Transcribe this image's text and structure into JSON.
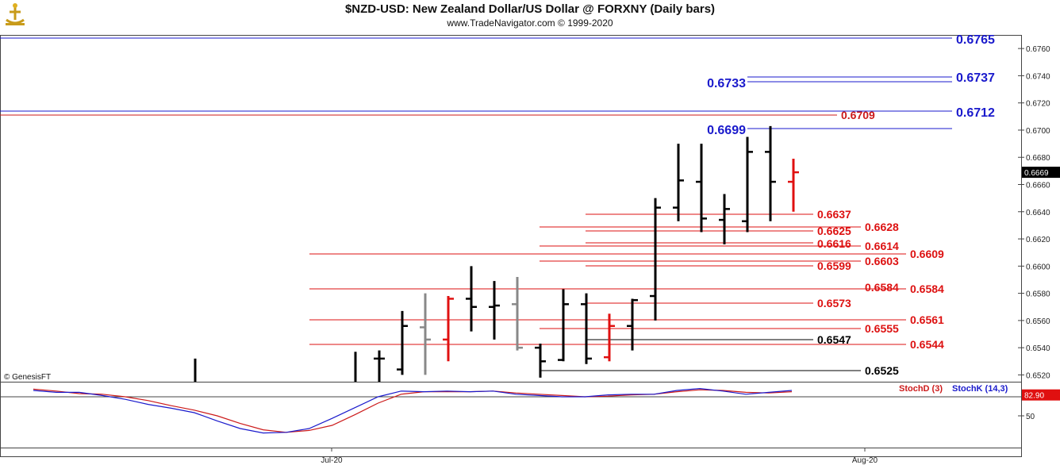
{
  "header": {
    "title": "$NZD-USD:  New Zealand Dollar/US Dollar @ FORXNY  (Daily bars)",
    "subtitle": "www.TradeNavigator.com © 1999-2020"
  },
  "chart_data": {
    "type": "ohlc",
    "ylim": [
      0.6515,
      0.677
    ],
    "y_ticks": [
      "0.6520",
      "0.6540",
      "0.6560",
      "0.6580",
      "0.6600",
      "0.6620",
      "0.6640",
      "0.6660",
      "0.6680",
      "0.6700",
      "0.6720",
      "0.6740",
      "0.6760"
    ],
    "x_ticks": [
      "Jul-20",
      "Aug-20"
    ],
    "last_price": "0.6669",
    "bars": [
      {
        "h": 0.6532,
        "l": 0.6515,
        "o": null,
        "c": null,
        "color": "black"
      },
      {
        "h": 0.6537,
        "l": 0.6515,
        "o": null,
        "c": null,
        "color": "black"
      },
      {
        "h": 0.6538,
        "l": 0.6515,
        "o": 0.6532,
        "c": 0.6532,
        "color": "black"
      },
      {
        "h": 0.6567,
        "l": 0.652,
        "o": 0.6524,
        "c": 0.6556,
        "color": "black"
      },
      {
        "h": 0.658,
        "l": 0.652,
        "o": 0.6555,
        "c": 0.6546,
        "color": "gray"
      },
      {
        "h": 0.6578,
        "l": 0.653,
        "o": 0.6546,
        "c": 0.6576,
        "color": "red"
      },
      {
        "h": 0.66,
        "l": 0.6552,
        "o": 0.6576,
        "c": 0.657,
        "color": "black"
      },
      {
        "h": 0.6589,
        "l": 0.6546,
        "o": 0.657,
        "c": 0.6571,
        "color": "black"
      },
      {
        "h": 0.6592,
        "l": 0.6538,
        "o": 0.6572,
        "c": 0.654,
        "color": "gray"
      },
      {
        "h": 0.6543,
        "l": 0.6518,
        "o": 0.654,
        "c": 0.653,
        "color": "black"
      },
      {
        "h": 0.6583,
        "l": 0.653,
        "o": 0.6531,
        "c": 0.6572,
        "color": "black"
      },
      {
        "h": 0.658,
        "l": 0.6528,
        "o": 0.6572,
        "c": 0.6532,
        "color": "black"
      },
      {
        "h": 0.6565,
        "l": 0.653,
        "o": 0.6533,
        "c": 0.6556,
        "color": "red"
      },
      {
        "h": 0.6576,
        "l": 0.6538,
        "o": 0.6556,
        "c": 0.6575,
        "color": "black"
      },
      {
        "h": 0.665,
        "l": 0.656,
        "o": 0.6578,
        "c": 0.6643,
        "color": "black"
      },
      {
        "h": 0.669,
        "l": 0.6633,
        "o": 0.6643,
        "c": 0.6663,
        "color": "black"
      },
      {
        "h": 0.669,
        "l": 0.6625,
        "o": 0.6662,
        "c": 0.6635,
        "color": "black"
      },
      {
        "h": 0.6653,
        "l": 0.6616,
        "o": 0.6634,
        "c": 0.6642,
        "color": "black"
      },
      {
        "h": 0.6695,
        "l": 0.6625,
        "o": 0.6633,
        "c": 0.6684,
        "color": "black"
      },
      {
        "h": 0.6703,
        "l": 0.6633,
        "o": 0.6684,
        "c": 0.6662,
        "color": "black"
      },
      {
        "h": 0.6679,
        "l": 0.664,
        "o": 0.6662,
        "c": 0.6669,
        "color": "red"
      }
    ],
    "resistance_levels": [
      {
        "label": "0.6765",
        "value": 0.6765,
        "color": "#1a1acc",
        "label_side": "right"
      },
      {
        "label": "0.6737",
        "value": 0.6737,
        "color": "#1a1acc",
        "label_side": "right"
      },
      {
        "label": "0.6733",
        "value": 0.6733,
        "color": "#1a1acc",
        "label_side": "left"
      },
      {
        "label": "0.6712",
        "value": 0.6712,
        "color": "#1a1acc",
        "label_side": "right"
      },
      {
        "label": "0.6709",
        "value": 0.6709,
        "color": "#cc1a1a",
        "label_side": "right"
      },
      {
        "label": "0.6699",
        "value": 0.6699,
        "color": "#1a1acc",
        "label_side": "left"
      }
    ],
    "support_levels": [
      {
        "label": "0.6637",
        "value": 0.6637,
        "color": "#dd1111"
      },
      {
        "label": "0.6628",
        "value": 0.6628,
        "color": "#dd1111"
      },
      {
        "label": "0.6625",
        "value": 0.6625,
        "color": "#dd1111"
      },
      {
        "label": "0.6616",
        "value": 0.6616,
        "color": "#dd1111"
      },
      {
        "label": "0.6614",
        "value": 0.6614,
        "color": "#dd1111"
      },
      {
        "label": "0.6609",
        "value": 0.6609,
        "color": "#dd1111"
      },
      {
        "label": "0.6603",
        "value": 0.6603,
        "color": "#dd1111"
      },
      {
        "label": "0.6599",
        "value": 0.6599,
        "color": "#dd1111"
      },
      {
        "label": "0.6584",
        "value": 0.6584,
        "color": "#dd1111"
      },
      {
        "label": "0.6584",
        "value": 0.6584,
        "color": "#dd1111"
      },
      {
        "label": "0.6573",
        "value": 0.6573,
        "color": "#dd1111"
      },
      {
        "label": "0.6561",
        "value": 0.6561,
        "color": "#dd1111"
      },
      {
        "label": "0.6555",
        "value": 0.6555,
        "color": "#dd1111"
      },
      {
        "label": "0.6547",
        "value": 0.6547,
        "color": "#000000"
      },
      {
        "label": "0.6544",
        "value": 0.6544,
        "color": "#dd1111"
      },
      {
        "label": "0.6525",
        "value": 0.6525,
        "color": "#000000"
      }
    ],
    "watermark": "© GenesisFT"
  },
  "stochastic": {
    "label_d": "StochD (3)",
    "label_k": "StochK (14,3)",
    "color_d": "#cc1a1a",
    "color_k": "#1a1acc",
    "last_value": "82.90",
    "tick_50": "50",
    "ylim": [
      0,
      100
    ],
    "k": [
      90,
      87,
      87,
      82,
      76,
      68,
      62,
      55,
      42,
      30,
      23,
      24,
      30,
      46,
      63,
      80,
      89,
      88,
      89,
      88,
      89,
      84,
      82,
      80,
      80,
      83,
      84,
      84,
      90,
      93,
      89,
      84,
      87,
      90
    ],
    "d": [
      92,
      89,
      85,
      84,
      80,
      74,
      66,
      59,
      50,
      38,
      28,
      24,
      27,
      35,
      52,
      70,
      84,
      88,
      88,
      88,
      89,
      86,
      84,
      82,
      80,
      81,
      83,
      84,
      88,
      91,
      90,
      87,
      86,
      88
    ]
  }
}
